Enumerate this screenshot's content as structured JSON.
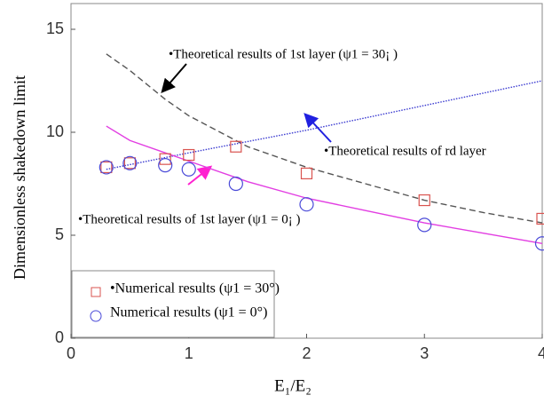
{
  "chart_data": {
    "type": "line",
    "xlabel": "E₁/E₂",
    "ylabel": "Dimensionless shakedown limit",
    "xlim": [
      0,
      4
    ],
    "xticks": [
      0,
      1,
      2,
      3,
      4
    ],
    "ylim": [
      0,
      16.25
    ],
    "yticks": [
      0,
      5,
      10,
      15
    ],
    "series": [
      {
        "type": "line",
        "color": "#555555",
        "dash": "7,4",
        "x": [
          0.3,
          0.5,
          0.8,
          1,
          1.5,
          2,
          2.5,
          3,
          3.5,
          4
        ],
        "values": [
          13.8,
          13.0,
          11.6,
          10.8,
          9.3,
          8.3,
          7.5,
          6.7,
          6.1,
          5.6
        ]
      },
      {
        "type": "line",
        "color": "#3a3ad0",
        "dash": "1.5,1.5",
        "x": [
          0.3,
          1,
          2,
          3,
          4
        ],
        "values": [
          8.2,
          9.0,
          10.1,
          11.3,
          12.5
        ]
      },
      {
        "type": "line",
        "color": "#e23ee2",
        "dash": "",
        "x": [
          0.3,
          0.5,
          0.8,
          1,
          1.5,
          2,
          2.5,
          3,
          3.5,
          4
        ],
        "values": [
          10.3,
          9.6,
          9.0,
          8.6,
          7.6,
          6.8,
          6.2,
          5.6,
          5.1,
          4.6
        ]
      },
      {
        "type": "square",
        "name": "•Numerical results (ψ1 = 30°)",
        "color": "#d9534f",
        "x": [
          0.3,
          0.5,
          0.8,
          1,
          1.4,
          2,
          3,
          4
        ],
        "values": [
          8.3,
          8.5,
          8.7,
          8.9,
          9.3,
          8.0,
          6.7,
          5.8
        ]
      },
      {
        "type": "circle",
        "name": "Numerical results (ψ1 = 0°)",
        "color": "#4a4ad8",
        "x": [
          0.3,
          0.5,
          0.8,
          1,
          1.4,
          2,
          3,
          4
        ],
        "values": [
          8.3,
          8.5,
          8.4,
          8.2,
          7.5,
          6.5,
          5.5,
          4.6
        ]
      }
    ],
    "annotations": [
      "•Theoretical results of 1st layer (ψ1 = 30¡ )",
      "•Theoretical results of rd layer",
      "•Theoretical results of 1st layer (ψ1 = 0¡ )"
    ]
  }
}
